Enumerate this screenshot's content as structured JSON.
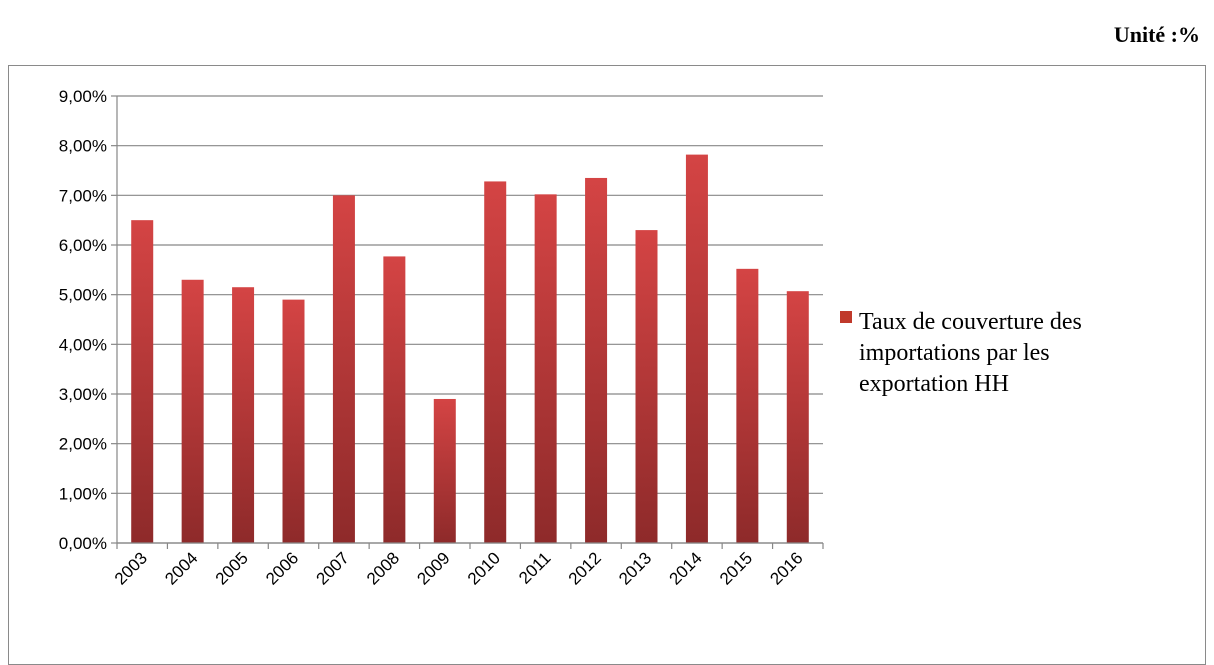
{
  "unit_label": "Unité :%",
  "chart_data": {
    "type": "bar",
    "categories": [
      "2003",
      "2004",
      "2005",
      "2006",
      "2007",
      "2008",
      "2009",
      "2010",
      "2011",
      "2012",
      "2013",
      "2014",
      "2015",
      "2016"
    ],
    "series": [
      {
        "name": "Taux de couverture des importations par les exportation HH",
        "values": [
          6.5,
          5.3,
          5.15,
          4.9,
          7.0,
          5.77,
          2.9,
          7.28,
          7.02,
          7.35,
          6.3,
          7.82,
          5.52,
          5.07
        ]
      }
    ],
    "y_tick_labels": [
      "0,00%",
      "1,00%",
      "2,00%",
      "3,00%",
      "4,00%",
      "5,00%",
      "6,00%",
      "7,00%",
      "8,00%",
      "9,00%"
    ],
    "ylim": [
      0,
      9
    ],
    "grid": "horizontal",
    "legend_position": "right",
    "legend_lines": [
      "Taux de couverture des",
      "importations par les",
      "exportation HH"
    ],
    "colors": {
      "bar_top": "#d44444",
      "bar_bottom": "#8e2a2a",
      "legend_swatch": "#c0392b",
      "grid": "#878787"
    }
  }
}
